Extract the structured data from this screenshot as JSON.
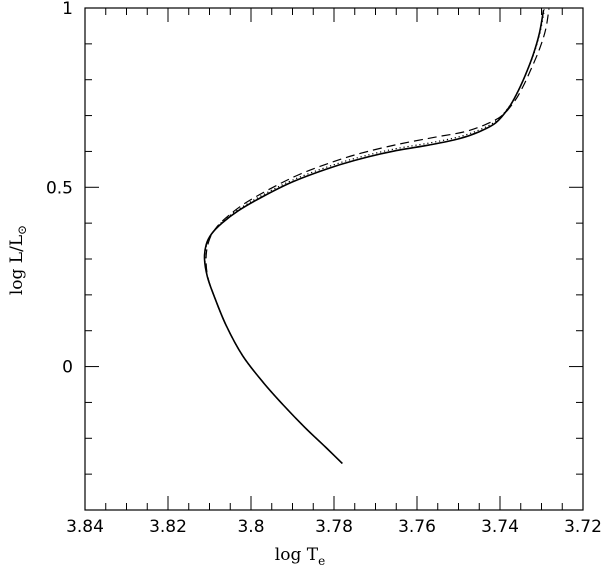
{
  "chart_data": {
    "type": "line",
    "title": "",
    "xlabel": {
      "main": "log  T",
      "sub": "e"
    },
    "ylabel": {
      "main": "log  L/L",
      "sub": "⊙"
    },
    "x_reversed": true,
    "xlim": [
      3.84,
      3.72
    ],
    "ylim": [
      -0.4,
      1.0
    ],
    "xticks": [
      3.84,
      3.82,
      3.8,
      3.78,
      3.76,
      3.74,
      3.72
    ],
    "xtick_labels": [
      "3.84",
      "3.82",
      "3.8",
      "3.78",
      "3.76",
      "3.74",
      "3.72"
    ],
    "xminor_step": 0.005,
    "yticks": [
      0,
      0.5,
      1
    ],
    "ytick_labels": [
      "0",
      "0.5",
      "1"
    ],
    "yminor_step": 0.1,
    "grid": false,
    "legend": "none",
    "series": [
      {
        "style": "solid",
        "x": [
          3.778,
          3.782,
          3.787,
          3.792,
          3.797,
          3.802,
          3.806,
          3.809,
          3.8105,
          3.8112,
          3.8108,
          3.8095,
          3.807,
          3.803,
          3.797,
          3.79,
          3.782,
          3.775,
          3.766,
          3.757,
          3.75,
          3.745,
          3.741,
          3.738,
          3.736,
          3.734,
          3.732,
          3.7305,
          3.7295
        ],
        "y": [
          -0.27,
          -0.225,
          -0.17,
          -0.11,
          -0.045,
          0.03,
          0.115,
          0.2,
          0.25,
          0.3,
          0.34,
          0.37,
          0.4,
          0.435,
          0.475,
          0.515,
          0.55,
          0.575,
          0.6,
          0.618,
          0.635,
          0.655,
          0.68,
          0.72,
          0.76,
          0.81,
          0.87,
          0.93,
          0.995
        ]
      },
      {
        "style": "dotted",
        "x": [
          3.778,
          3.782,
          3.787,
          3.792,
          3.797,
          3.802,
          3.806,
          3.809,
          3.8105,
          3.8111,
          3.8106,
          3.8092,
          3.8068,
          3.8028,
          3.7968,
          3.7898,
          3.7818,
          3.7748,
          3.7658,
          3.7568,
          3.7498,
          3.7448,
          3.7408,
          3.7378,
          3.7358,
          3.7338,
          3.7318,
          3.7303,
          3.7293
        ],
        "y": [
          -0.27,
          -0.225,
          -0.17,
          -0.11,
          -0.045,
          0.03,
          0.115,
          0.2,
          0.252,
          0.302,
          0.343,
          0.374,
          0.405,
          0.44,
          0.481,
          0.521,
          0.556,
          0.581,
          0.606,
          0.624,
          0.641,
          0.661,
          0.686,
          0.725,
          0.765,
          0.815,
          0.874,
          0.934,
          0.996
        ]
      },
      {
        "style": "dashed",
        "x": [
          3.778,
          3.782,
          3.787,
          3.792,
          3.797,
          3.802,
          3.806,
          3.809,
          3.8105,
          3.8108,
          3.81,
          3.8082,
          3.8055,
          3.8015,
          3.7955,
          3.7885,
          3.7805,
          3.7735,
          3.7645,
          3.7555,
          3.7485,
          3.7435,
          3.7395,
          3.7365,
          3.7345,
          3.7325,
          3.7305,
          3.729,
          3.7282
        ],
        "y": [
          -0.27,
          -0.225,
          -0.17,
          -0.11,
          -0.045,
          0.03,
          0.115,
          0.2,
          0.255,
          0.31,
          0.355,
          0.39,
          0.42,
          0.455,
          0.495,
          0.535,
          0.57,
          0.595,
          0.62,
          0.64,
          0.655,
          0.675,
          0.7,
          0.74,
          0.78,
          0.83,
          0.885,
          0.94,
          0.998
        ]
      }
    ]
  }
}
